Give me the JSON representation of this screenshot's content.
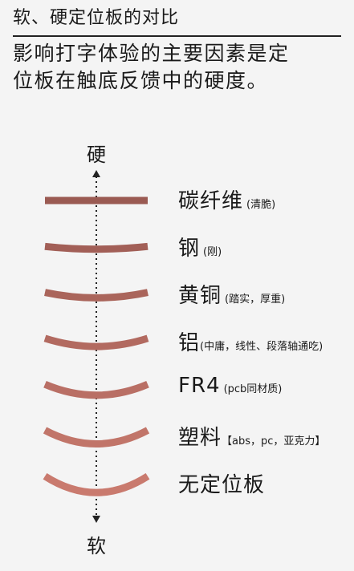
{
  "header": {
    "title": "软、硬定位板的对比",
    "description_line1": "影响打字体验的主要因素是定",
    "description_line2": "位板在触底反馈中的硬度。"
  },
  "axis": {
    "top_label": "硬",
    "bottom_label": "软"
  },
  "materials": [
    {
      "name": "碳纤维",
      "note": "(清脆)",
      "curvature": 0
    },
    {
      "name": "钢",
      "note": "(刚)",
      "curvature": 1
    },
    {
      "name": "黄铜",
      "note": "(踏实，厚重)",
      "curvature": 2
    },
    {
      "name": "铝",
      "note": "(中庸，线性、段落轴通吃)",
      "curvature": 3
    },
    {
      "name": "FR4",
      "note": "(pcb同材质)",
      "curvature": 4
    },
    {
      "name": "塑料",
      "note": "【abs，pc，亚克力】",
      "curvature": 5
    },
    {
      "name": "无定位板",
      "note": "",
      "curvature": 6
    }
  ],
  "colors": {
    "plate_dark": "#9a5a52",
    "plate_light": "#c97a6e",
    "axis": "#222222"
  }
}
